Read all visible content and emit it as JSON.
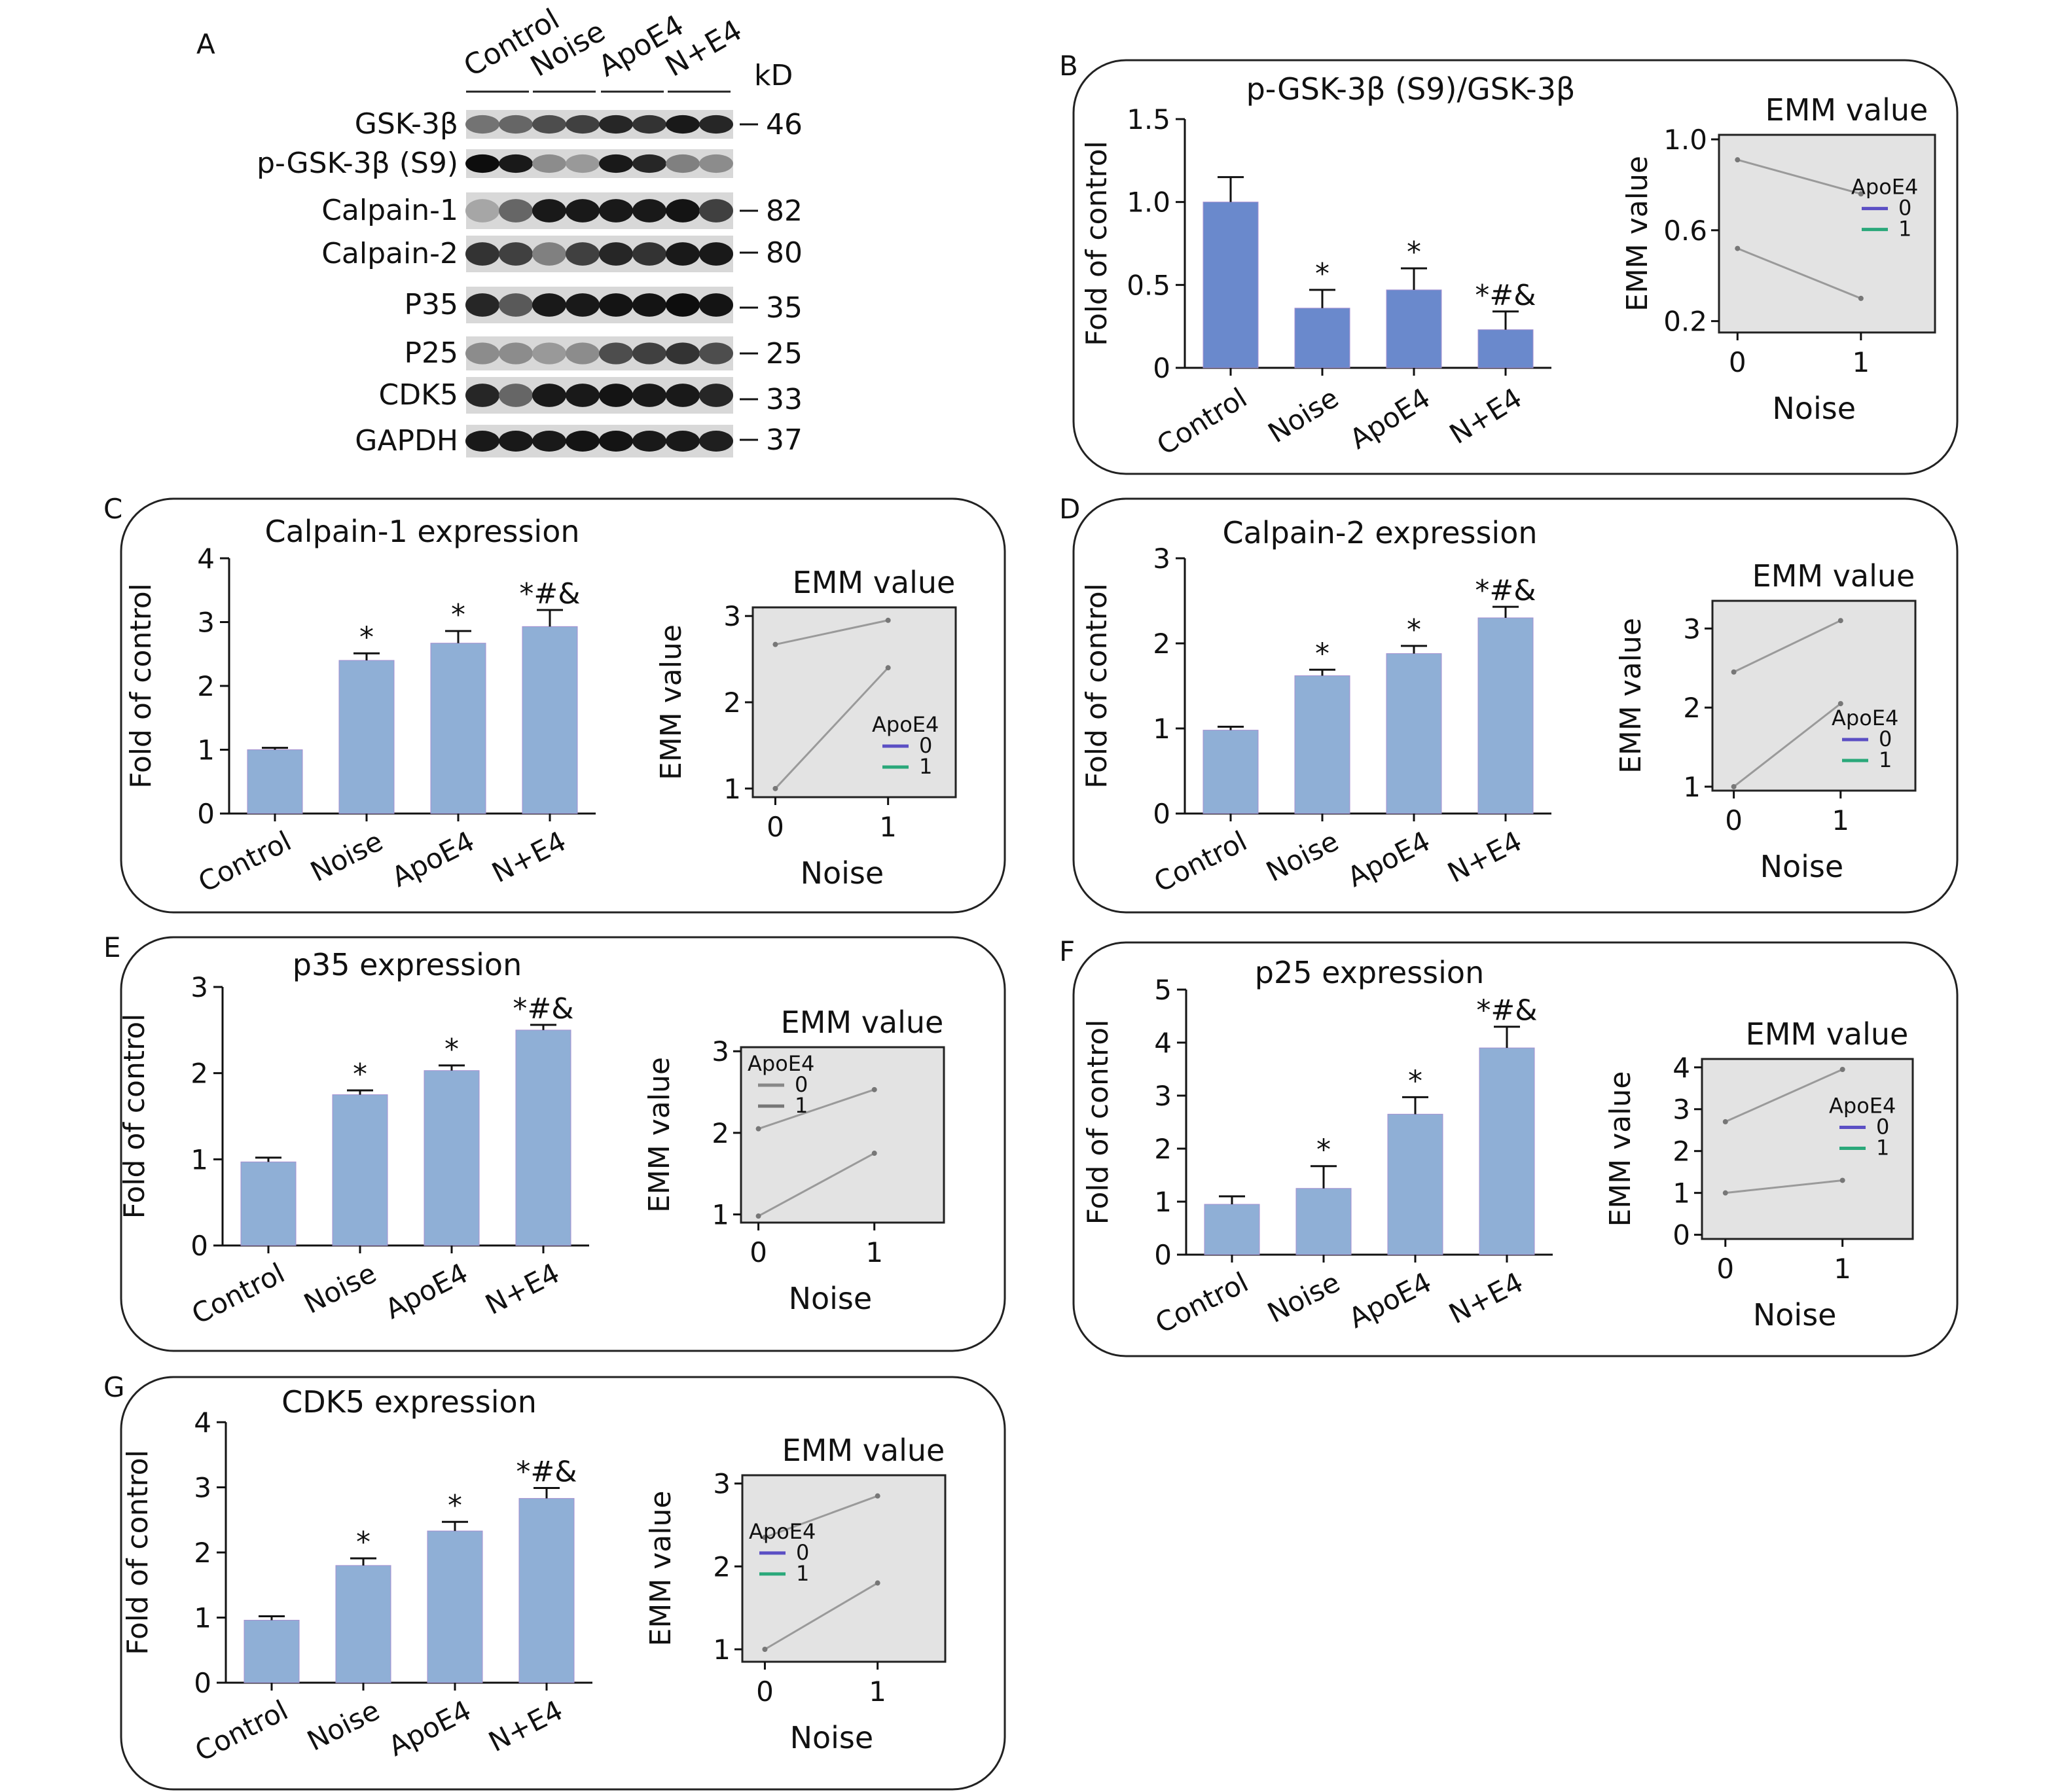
{
  "blot": {
    "letter": "A",
    "lanes": [
      "Control",
      "Noise",
      "ApoE4",
      "N+E4"
    ],
    "kd_header": "kD",
    "rows": [
      {
        "label": "GSK-3β",
        "kd": "46"
      },
      {
        "label": "p-GSK-3β (S9)",
        "kd": ""
      },
      {
        "label": "Calpain-1",
        "kd": "82"
      },
      {
        "label": "Calpain-2",
        "kd": "80"
      },
      {
        "label": "P35",
        "kd": "35"
      },
      {
        "label": "P25",
        "kd": "25"
      },
      {
        "label": "CDK5",
        "kd": "33"
      },
      {
        "label": "GAPDH",
        "kd": "37"
      }
    ]
  },
  "chart_data": [
    {
      "letter": "B",
      "type": "bar",
      "title": "p-GSK-3β (S9)/GSK-3β",
      "categories": [
        "Control",
        "Noise",
        "ApoE4",
        "N+E4"
      ],
      "values": [
        1.0,
        0.36,
        0.47,
        0.23
      ],
      "errors": [
        0.15,
        0.11,
        0.13,
        0.11
      ],
      "significance": [
        "",
        "*",
        "*",
        "*#&"
      ],
      "ylabel": "Fold of control",
      "ylim": [
        0,
        1.5
      ],
      "yticks": [
        0,
        0.5,
        1.0,
        1.5
      ],
      "ytick_labels": [
        "0",
        "0.5",
        "1.0",
        "1.5"
      ],
      "bar_color": "#6a89cc",
      "emm": {
        "type": "line",
        "title": "EMM value",
        "xlabel": "Noise",
        "ylabel": "EMM value",
        "x": [
          0,
          1
        ],
        "xlim": [
          -0.15,
          1.6
        ],
        "ylim": [
          0.15,
          1.02
        ],
        "yticks": [
          0.2,
          0.6,
          1.0
        ],
        "ytick_labels": [
          "0.2",
          "0.6",
          "1.0"
        ],
        "legend_title": "ApoE4",
        "legend_placement": "right",
        "series": [
          {
            "name": "0",
            "values": [
              0.91,
              0.76
            ],
            "color": "#5b4fc4"
          },
          {
            "name": "1",
            "values": [
              0.52,
              0.3
            ],
            "color": "#2aa87a"
          }
        ]
      }
    },
    {
      "letter": "C",
      "type": "bar",
      "title": "Calpain-1 expression",
      "categories": [
        "Control",
        "Noise",
        "ApoE4",
        "N+E4"
      ],
      "values": [
        1.0,
        2.4,
        2.67,
        2.93
      ],
      "errors": [
        0.03,
        0.11,
        0.19,
        0.26
      ],
      "significance": [
        "",
        "*",
        "*",
        "*#&"
      ],
      "ylabel": "Fold of control",
      "ylim": [
        0,
        4
      ],
      "yticks": [
        0,
        1,
        2,
        3,
        4
      ],
      "ytick_labels": [
        "0",
        "1",
        "2",
        "3",
        "4"
      ],
      "bar_color": "#8fafd6",
      "emm": {
        "type": "line",
        "title": "EMM value",
        "xlabel": "Noise",
        "ylabel": "EMM value",
        "x": [
          0,
          1
        ],
        "xlim": [
          -0.2,
          1.6
        ],
        "ylim": [
          0.9,
          3.1
        ],
        "yticks": [
          1,
          2,
          3
        ],
        "ytick_labels": [
          "1",
          "2",
          "3"
        ],
        "legend_title": "ApoE4",
        "legend_placement": "bottom-right",
        "series": [
          {
            "name": "0",
            "values": [
              1.0,
              2.4
            ],
            "color": "#5b4fc4"
          },
          {
            "name": "1",
            "values": [
              2.67,
              2.95
            ],
            "color": "#2aa87a"
          }
        ]
      }
    },
    {
      "letter": "D",
      "type": "bar",
      "title": "Calpain-2 expression",
      "categories": [
        "Control",
        "Noise",
        "ApoE4",
        "N+E4"
      ],
      "values": [
        0.98,
        1.62,
        1.88,
        2.3
      ],
      "errors": [
        0.04,
        0.07,
        0.09,
        0.13
      ],
      "significance": [
        "",
        "*",
        "*",
        "*#&"
      ],
      "ylabel": "Fold of control",
      "ylim": [
        0,
        3
      ],
      "yticks": [
        0,
        1,
        2,
        3
      ],
      "ytick_labels": [
        "0",
        "1",
        "2",
        "3"
      ],
      "bar_color": "#8fafd6",
      "emm": {
        "type": "line",
        "title": "EMM value",
        "xlabel": "Noise",
        "ylabel": "EMM value",
        "x": [
          0,
          1
        ],
        "xlim": [
          -0.2,
          1.7
        ],
        "ylim": [
          0.95,
          3.35
        ],
        "yticks": [
          1,
          2,
          3
        ],
        "ytick_labels": [
          "1",
          "2",
          "3"
        ],
        "legend_title": "ApoE4",
        "legend_placement": "bottom-right",
        "series": [
          {
            "name": "0",
            "values": [
              1.0,
              2.05
            ],
            "color": "#5b4fc4"
          },
          {
            "name": "1",
            "values": [
              2.45,
              3.1
            ],
            "color": "#2aa87a"
          }
        ]
      }
    },
    {
      "letter": "E",
      "type": "bar",
      "title": "p35 expression",
      "categories": [
        "Control",
        "Noise",
        "ApoE4",
        "N+E4"
      ],
      "values": [
        0.97,
        1.75,
        2.03,
        2.5
      ],
      "errors": [
        0.05,
        0.05,
        0.06,
        0.06
      ],
      "significance": [
        "",
        "*",
        "*",
        "*#&"
      ],
      "ylabel": "Fold of control",
      "ylim": [
        0,
        3
      ],
      "yticks": [
        0,
        1,
        2,
        3
      ],
      "ytick_labels": [
        "0",
        "1",
        "2",
        "3"
      ],
      "bar_color": "#8fafd6",
      "emm": {
        "type": "line",
        "title": "EMM value",
        "xlabel": "Noise",
        "ylabel": "EMM value",
        "x": [
          0,
          1
        ],
        "xlim": [
          -0.15,
          1.6
        ],
        "ylim": [
          0.9,
          3.05
        ],
        "yticks": [
          1,
          2,
          3
        ],
        "ytick_labels": [
          "1",
          "2",
          "3"
        ],
        "legend_title": "ApoE4",
        "legend_placement": "top-left",
        "series": [
          {
            "name": "0",
            "values": [
              0.98,
              1.75
            ],
            "color": "#888888"
          },
          {
            "name": "1",
            "values": [
              2.05,
              2.53
            ],
            "color": "#777777"
          }
        ]
      }
    },
    {
      "letter": "F",
      "type": "bar",
      "title": "p25 expression",
      "categories": [
        "Control",
        "Noise",
        "ApoE4",
        "N+E4"
      ],
      "values": [
        0.95,
        1.25,
        2.65,
        3.9
      ],
      "errors": [
        0.15,
        0.42,
        0.32,
        0.4
      ],
      "significance": [
        "",
        "*",
        "*",
        "*#&"
      ],
      "ylabel": "Fold of control",
      "ylim": [
        0,
        5
      ],
      "yticks": [
        0,
        1,
        2,
        3,
        4,
        5
      ],
      "ytick_labels": [
        "0",
        "1",
        "2",
        "3",
        "4",
        "5"
      ],
      "bar_color": "#8fafd6",
      "emm": {
        "type": "line",
        "title": "EMM value",
        "xlabel": "Noise",
        "ylabel": "EMM value",
        "x": [
          0,
          1
        ],
        "xlim": [
          -0.2,
          1.6
        ],
        "ylim": [
          -0.1,
          4.2
        ],
        "yticks": [
          0,
          1,
          2,
          3,
          4
        ],
        "ytick_labels": [
          "0",
          "1",
          "2",
          "3",
          "4"
        ],
        "legend_title": "ApoE4",
        "legend_placement": "right",
        "series": [
          {
            "name": "0",
            "values": [
              1.0,
              1.3
            ],
            "color": "#5b4fc4"
          },
          {
            "name": "1",
            "values": [
              2.7,
              3.95
            ],
            "color": "#2aa87a"
          }
        ]
      }
    },
    {
      "letter": "G",
      "type": "bar",
      "title": "CDK5 expression",
      "categories": [
        "Control",
        "Noise",
        "ApoE4",
        "N+E4"
      ],
      "values": [
        0.96,
        1.8,
        2.33,
        2.83
      ],
      "errors": [
        0.06,
        0.11,
        0.14,
        0.16
      ],
      "significance": [
        "",
        "*",
        "*",
        "*#&"
      ],
      "ylabel": "Fold of control",
      "ylim": [
        0,
        4
      ],
      "yticks": [
        0,
        1,
        2,
        3,
        4
      ],
      "ytick_labels": [
        "0",
        "1",
        "2",
        "3",
        "4"
      ],
      "bar_color": "#8fafd6",
      "emm": {
        "type": "line",
        "title": "EMM value",
        "xlabel": "Noise",
        "ylabel": "EMM value",
        "x": [
          0,
          1
        ],
        "xlim": [
          -0.2,
          1.6
        ],
        "ylim": [
          0.85,
          3.1
        ],
        "yticks": [
          1,
          2,
          3
        ],
        "ytick_labels": [
          "1",
          "2",
          "3"
        ],
        "legend_title": "ApoE4",
        "legend_placement": "left",
        "series": [
          {
            "name": "0",
            "values": [
              1.0,
              1.8
            ],
            "color": "#5b4fc4"
          },
          {
            "name": "1",
            "values": [
              2.35,
              2.85
            ],
            "color": "#2aa87a"
          }
        ]
      }
    }
  ]
}
